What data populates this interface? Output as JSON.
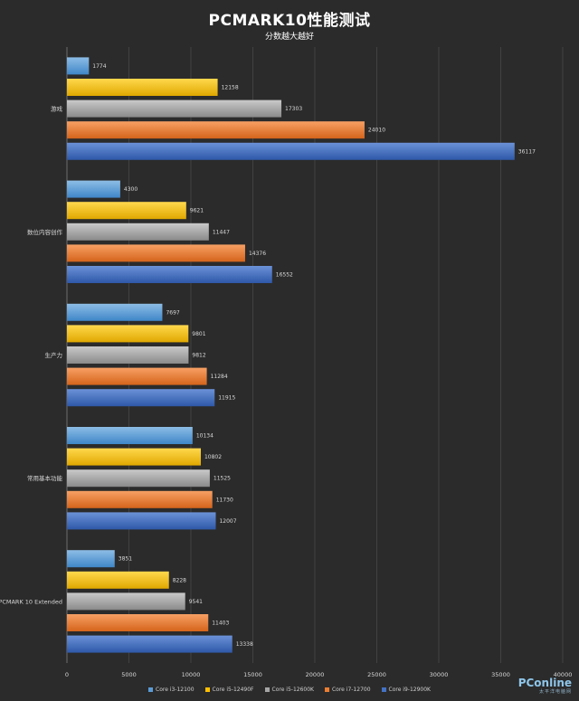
{
  "chart_data": {
    "type": "bar",
    "orientation": "horizontal",
    "title": "PCMARK10性能测试",
    "subtitle": "分数越大越好",
    "categories": [
      "游戏",
      "数位内容创作",
      "生产力",
      "常用基本功能",
      "PCMARK 10  Extended"
    ],
    "series": [
      {
        "name": "Core i3-12100",
        "color": "#5b9bd5",
        "values": [
          1774,
          4300,
          7697,
          10134,
          3851
        ]
      },
      {
        "name": "Core i5-12490F",
        "color": "#ffc000",
        "values": [
          12158,
          9621,
          9801,
          10802,
          8228
        ]
      },
      {
        "name": "Core i5-12600K",
        "color": "#a5a5a5",
        "values": [
          17303,
          11447,
          9812,
          11525,
          9541
        ]
      },
      {
        "name": "Core i7-12700",
        "color": "#ed7d31",
        "values": [
          24010,
          14376,
          11284,
          11730,
          11403
        ]
      },
      {
        "name": "Core i9-12900K",
        "color": "#4472c4",
        "values": [
          36117,
          16552,
          11915,
          12007,
          13338
        ]
      }
    ],
    "xlim": [
      0,
      40000
    ],
    "xticks": [
      "0",
      "5000",
      "10000",
      "15000",
      "20000",
      "25000",
      "30000",
      "35000",
      "40000"
    ],
    "grid": true,
    "legend_position": "bottom"
  },
  "watermark": {
    "main": "PConline",
    "sub": "太平洋电脑网"
  }
}
